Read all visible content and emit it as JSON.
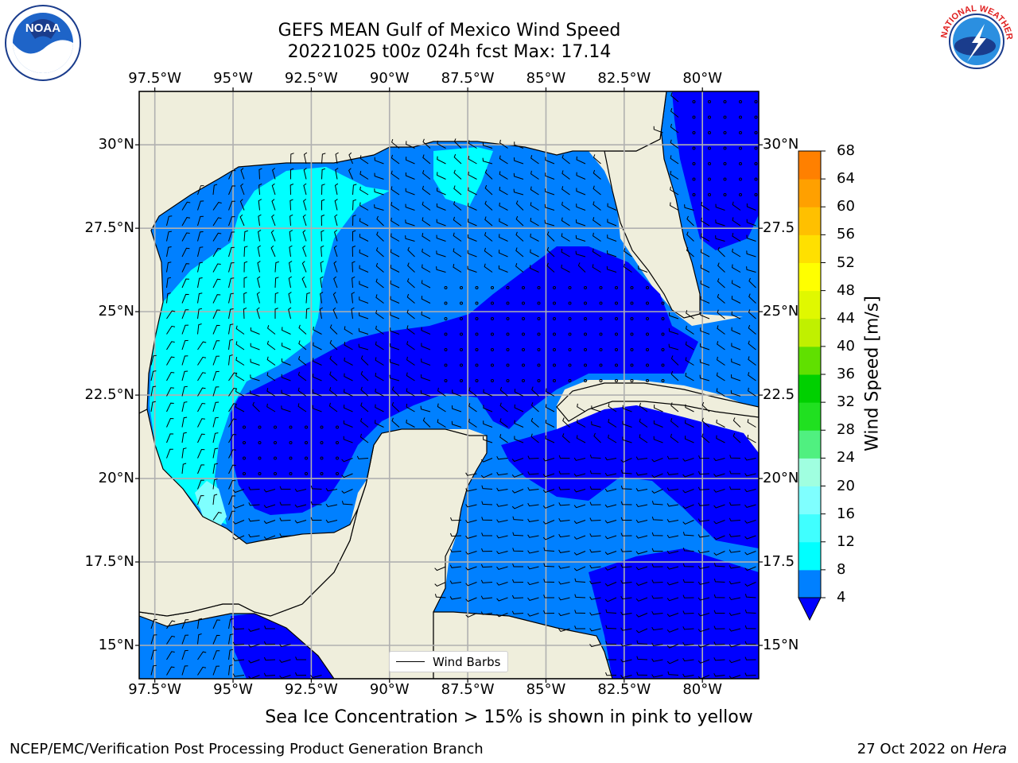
{
  "title": {
    "line1": "GEFS MEAN Gulf of Mexico Wind Speed",
    "line2": "20221025 t00z 024h fcst   Max: 17.14"
  },
  "axes": {
    "lon_labels": [
      "97.5°W",
      "95°W",
      "92.5°W",
      "90°W",
      "87.5°W",
      "85°W",
      "82.5°W",
      "80°W"
    ],
    "lat_labels_left": [
      "30°N",
      "27.5°N",
      "25°N",
      "22.5°N",
      "20°N",
      "17.5°N",
      "15°N"
    ],
    "lat_labels_right": [
      "30°N",
      "27.5",
      "25°N",
      "22.5",
      "20°N",
      "17.5",
      "15°N"
    ],
    "lon_values": [
      -97.5,
      -95,
      -92.5,
      -90,
      -87.5,
      -85,
      -82.5,
      -80
    ],
    "lat_values": [
      30,
      27.5,
      25,
      22.5,
      20,
      17.5,
      15
    ],
    "extent": {
      "lon_min": -98,
      "lon_max": -78.2,
      "lat_min": 14,
      "lat_max": 31.6
    }
  },
  "legend": {
    "label": "Wind Barbs"
  },
  "colorbar": {
    "label": "Wind Speed [m/s]",
    "ticks": [
      "68",
      "64",
      "60",
      "56",
      "52",
      "48",
      "44",
      "40",
      "36",
      "32",
      "28",
      "24",
      "20",
      "16",
      "12",
      "8",
      "4"
    ],
    "colors": [
      "#0000ff",
      "#0080ff",
      "#00ffff",
      "#40ffff",
      "#7fffff",
      "#a0ffe0",
      "#50f080",
      "#20e020",
      "#00d000",
      "#60e000",
      "#c0f000",
      "#e0f800",
      "#ffff00",
      "#ffe000",
      "#ffc000",
      "#ffa000",
      "#ff8000",
      "#ff5000",
      "#ff2000"
    ],
    "under_color": "#0000ff"
  },
  "colors": {
    "land": "#efeedc",
    "light_blue": "#0080ff",
    "dark_blue": "#0000ff",
    "cyan": "#00ffff",
    "light_cyan": "#40ffff",
    "grid": "#b0b0b0"
  },
  "note": "Sea Ice Concentration > 15% is shown in pink to yellow",
  "footer": {
    "left": "NCEP/EMC/Verification Post Processing Product Generation Branch",
    "right_prefix": "27 Oct 2022 on ",
    "right_machine": "Hera"
  },
  "logos": {
    "noaa": "NOAA",
    "nws": "NATIONAL WEATHER SERVICE"
  }
}
